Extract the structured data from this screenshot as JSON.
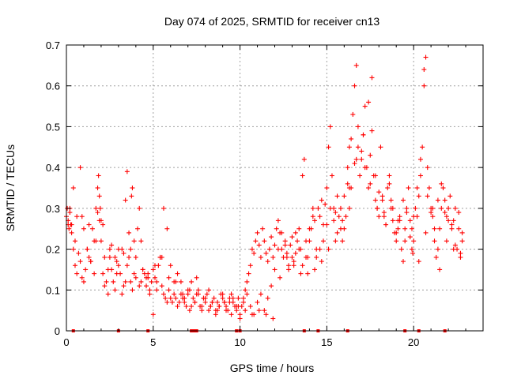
{
  "chart_data": {
    "type": "scatter",
    "title": "Day 074 of 2025, SRMTID for receiver cn13",
    "xlabel": "GPS time / hours",
    "ylabel": "SRMTID / TECUs",
    "xlim": [
      0,
      24
    ],
    "ylim": [
      0,
      0.7
    ],
    "x_ticks": [
      0,
      5,
      10,
      15,
      20
    ],
    "x_tick_labels": [
      "0",
      "5",
      "10",
      "15",
      "20"
    ],
    "y_ticks": [
      0,
      0.1,
      0.2,
      0.3,
      0.4,
      0.5,
      0.6,
      0.7
    ],
    "y_tick_labels": [
      "0",
      "0.1",
      "0.2",
      "0.3",
      "0.4",
      "0.5",
      "0.6",
      "0.7"
    ],
    "grid": true,
    "marker": "plus",
    "series": [
      {
        "name": "SRMTID",
        "color": "#ff0000",
        "x": [
          0.0,
          0.05,
          0.1,
          0.15,
          0.2,
          0.25,
          0.3,
          0.4,
          0.5,
          0.6,
          0.7,
          0.8,
          0.9,
          1.0,
          1.1,
          1.2,
          1.3,
          1.4,
          1.5,
          1.6,
          1.7,
          1.8,
          1.85,
          1.9,
          1.95,
          2.0,
          2.1,
          2.2,
          2.3,
          2.4,
          2.5,
          2.6,
          2.7,
          2.8,
          2.9,
          3.0,
          3.1,
          3.2,
          3.3,
          3.4,
          3.5,
          3.6,
          3.7,
          3.75,
          3.8,
          3.9,
          4.0,
          4.1,
          4.2,
          4.3,
          4.4,
          4.5,
          4.6,
          4.7,
          4.8,
          4.9,
          5.0,
          5.1,
          5.2,
          5.3,
          5.4,
          5.5,
          5.6,
          5.7,
          5.8,
          5.9,
          6.0,
          6.1,
          6.2,
          6.3,
          6.4,
          6.5,
          6.6,
          6.7,
          6.8,
          6.9,
          7.0,
          7.1,
          7.2,
          7.3,
          7.4,
          7.5,
          7.6,
          7.7,
          7.8,
          7.9,
          8.0,
          8.1,
          8.2,
          8.3,
          8.4,
          8.5,
          8.6,
          8.7,
          8.8,
          8.9,
          9.0,
          9.1,
          9.2,
          9.3,
          9.4,
          9.5,
          9.6,
          9.7,
          9.8,
          9.9,
          10.0,
          10.1,
          10.2,
          10.3,
          10.4,
          10.5,
          10.6,
          10.7,
          10.8,
          10.9,
          11.0,
          11.1,
          11.2,
          11.3,
          11.4,
          11.5,
          11.6,
          11.7,
          11.8,
          11.9,
          12.0,
          12.1,
          12.2,
          12.3,
          12.4,
          12.5,
          12.6,
          12.7,
          12.8,
          12.9,
          13.0,
          13.1,
          13.2,
          13.3,
          13.4,
          13.5,
          13.6,
          13.7,
          13.8,
          13.9,
          14.0,
          14.1,
          14.2,
          14.3,
          14.4,
          14.5,
          14.6,
          14.7,
          14.8,
          14.9,
          15.0,
          15.1,
          15.2,
          15.3,
          15.4,
          15.5,
          15.6,
          15.7,
          15.8,
          15.9,
          16.0,
          16.1,
          16.2,
          16.3,
          16.4,
          16.5,
          16.6,
          16.7,
          16.8,
          16.9,
          17.0,
          17.1,
          17.2,
          17.3,
          17.4,
          17.5,
          17.6,
          17.7,
          17.8,
          17.9,
          18.0,
          18.1,
          18.2,
          18.3,
          18.4,
          18.5,
          18.6,
          18.7,
          18.8,
          18.9,
          19.0,
          19.1,
          19.2,
          19.3,
          19.4,
          19.5,
          19.6,
          19.7,
          19.8,
          19.9,
          20.0,
          20.1,
          20.2,
          20.3,
          20.4,
          20.5,
          20.6,
          20.7,
          20.8,
          20.9,
          21.0,
          21.1,
          21.2,
          21.3,
          21.4,
          21.5,
          21.6,
          21.7,
          21.8,
          21.9,
          22.0,
          22.1,
          22.2,
          22.3,
          22.4,
          22.5,
          22.6,
          22.7,
          22.8,
          0.1,
          0.2,
          0.4,
          0.6,
          0.8,
          1.0,
          1.2,
          1.4,
          1.6,
          1.8,
          1.9,
          2.0,
          2.2,
          2.4,
          2.6,
          2.8,
          3.0,
          3.2,
          3.4,
          3.5,
          3.6,
          3.7,
          3.8,
          4.0,
          4.2,
          4.4,
          4.6,
          4.8,
          5.0,
          5.2,
          5.4,
          5.6,
          5.8,
          6.0,
          6.2,
          6.4,
          6.6,
          6.8,
          7.0,
          7.2,
          7.4,
          7.6,
          7.8,
          8.0,
          8.2,
          8.4,
          8.6,
          8.8,
          9.0,
          9.2,
          9.4,
          9.6,
          9.8,
          10.0,
          10.2,
          10.4,
          10.6,
          10.8,
          11.0,
          11.2,
          11.4,
          11.6,
          11.8,
          12.0,
          12.2,
          12.4,
          12.6,
          12.8,
          13.0,
          13.2,
          13.4,
          13.6,
          13.8,
          14.0,
          14.2,
          14.4,
          14.6,
          14.8,
          15.0,
          15.2,
          15.4,
          15.6,
          15.8,
          16.0,
          16.2,
          16.3,
          16.4,
          16.6,
          16.8,
          17.0,
          17.2,
          17.4,
          17.6,
          17.8,
          18.0,
          18.2,
          18.4,
          18.6,
          18.8,
          19.0,
          19.2,
          19.4,
          19.6,
          19.8,
          19.95,
          20.0,
          20.2,
          20.4,
          20.6,
          20.8,
          21.0,
          21.2,
          21.4,
          21.6,
          21.8,
          22.0,
          22.2,
          22.4,
          22.6,
          22.8,
          0.3,
          0.5,
          0.9,
          1.3,
          1.7,
          2.1,
          2.5,
          2.9,
          3.3,
          3.9,
          4.3,
          4.7,
          5.1,
          5.5,
          5.9,
          6.3,
          6.7,
          7.1,
          7.5,
          7.9,
          8.3,
          8.7,
          9.1,
          9.5,
          9.9,
          10.3,
          10.7,
          11.1,
          11.5,
          11.9,
          12.3,
          12.7,
          13.1,
          13.5,
          13.9,
          14.3,
          14.7,
          15.1,
          15.5,
          15.9,
          16.3,
          16.7,
          17.1,
          17.5,
          17.9,
          18.3,
          18.7,
          19.1,
          19.5,
          19.9,
          20.3,
          20.7,
          21.1,
          21.5,
          21.9,
          22.3,
          22.7
        ],
        "y": [
          0.28,
          0.3,
          0.27,
          0.25,
          0.29,
          0.26,
          0.24,
          0.2,
          0.16,
          0.14,
          0.19,
          0.17,
          0.13,
          0.12,
          0.15,
          0.2,
          0.18,
          0.17,
          0.25,
          0.22,
          0.3,
          0.35,
          0.38,
          0.33,
          0.3,
          0.27,
          0.14,
          0.11,
          0.12,
          0.09,
          0.18,
          0.15,
          0.12,
          0.1,
          0.17,
          0.2,
          0.14,
          0.09,
          0.11,
          0.12,
          0.16,
          0.18,
          0.2,
          0.33,
          0.35,
          0.22,
          0.18,
          0.25,
          0.3,
          0.22,
          0.15,
          0.14,
          0.11,
          0.13,
          0.09,
          0.12,
          0.15,
          0.13,
          0.12,
          0.16,
          0.18,
          0.11,
          0.09,
          0.08,
          0.07,
          0.1,
          0.08,
          0.07,
          0.09,
          0.08,
          0.06,
          0.07,
          0.09,
          0.08,
          0.07,
          0.06,
          0.09,
          0.05,
          0.06,
          0.08,
          0.07,
          0.09,
          0.1,
          0.06,
          0.05,
          0.08,
          0.07,
          0.09,
          0.1,
          0.06,
          0.07,
          0.08,
          0.05,
          0.07,
          0.06,
          0.09,
          0.08,
          0.07,
          0.06,
          0.05,
          0.08,
          0.09,
          0.07,
          0.06,
          0.05,
          0.08,
          0.03,
          0.06,
          0.08,
          0.1,
          0.12,
          0.14,
          0.16,
          0.2,
          0.19,
          0.22,
          0.24,
          0.21,
          0.18,
          0.25,
          0.22,
          0.19,
          0.17,
          0.2,
          0.23,
          0.18,
          0.21,
          0.25,
          0.27,
          0.24,
          0.2,
          0.18,
          0.22,
          0.19,
          0.16,
          0.21,
          0.23,
          0.17,
          0.19,
          0.22,
          0.25,
          0.2,
          0.38,
          0.42,
          0.18,
          0.14,
          0.22,
          0.25,
          0.3,
          0.27,
          0.2,
          0.3,
          0.28,
          0.32,
          0.26,
          0.31,
          0.35,
          0.45,
          0.5,
          0.38,
          0.3,
          0.29,
          0.33,
          0.28,
          0.3,
          0.22,
          0.25,
          0.28,
          0.4,
          0.45,
          0.47,
          0.53,
          0.6,
          0.65,
          0.45,
          0.38,
          0.42,
          0.48,
          0.55,
          0.4,
          0.35,
          0.43,
          0.49,
          0.38,
          0.32,
          0.3,
          0.28,
          0.45,
          0.33,
          0.29,
          0.26,
          0.35,
          0.38,
          0.3,
          0.27,
          0.24,
          0.22,
          0.25,
          0.28,
          0.2,
          0.17,
          0.22,
          0.3,
          0.35,
          0.27,
          0.25,
          0.22,
          0.3,
          0.28,
          0.33,
          0.38,
          0.45,
          0.6,
          0.67,
          0.4,
          0.35,
          0.3,
          0.28,
          0.22,
          0.18,
          0.2,
          0.25,
          0.3,
          0.35,
          0.32,
          0.28,
          0.3,
          0.33,
          0.25,
          0.27,
          0.3,
          0.2,
          0.25,
          0.18,
          0.22,
          0.26,
          0.3,
          0.35,
          0.28,
          0.4,
          0.25,
          0.2,
          0.17,
          0.14,
          0.29,
          0.27,
          0.22,
          0.18,
          0.15,
          0.21,
          0.18,
          0.16,
          0.2,
          0.32,
          0.39,
          0.24,
          0.12,
          0.1,
          0.13,
          0.11,
          0.15,
          0.13,
          0.1,
          0.04,
          0.1,
          0.18,
          0.3,
          0.25,
          0.16,
          0.12,
          0.14,
          0.12,
          0.08,
          0.1,
          0.12,
          0.07,
          0.09,
          0.06,
          0.08,
          0.05,
          0.07,
          0.04,
          0.06,
          0.09,
          0.05,
          0.07,
          0.08,
          0.06,
          0.04,
          0.07,
          0.09,
          0.06,
          0.04,
          0.07,
          0.09,
          0.05,
          0.08,
          0.11,
          0.15,
          0.2,
          0.24,
          0.21,
          0.15,
          0.18,
          0.24,
          0.2,
          0.16,
          0.22,
          0.25,
          0.28,
          0.18,
          0.2,
          0.22,
          0.26,
          0.3,
          0.27,
          0.24,
          0.25,
          0.33,
          0.36,
          0.3,
          0.35,
          0.41,
          0.5,
          0.44,
          0.4,
          0.56,
          0.62,
          0.38,
          0.34,
          0.32,
          0.26,
          0.36,
          0.3,
          0.24,
          0.27,
          0.32,
          0.29,
          0.23,
          0.19,
          0.28,
          0.35,
          0.42,
          0.64,
          0.33,
          0.29,
          0.25,
          0.32,
          0.36,
          0.29,
          0.27,
          0.26,
          0.21,
          0.29,
          0.24,
          0.26,
          0.22,
          0.28,
          0.26,
          0.22,
          0.26,
          0.2,
          0.14,
          0.19,
          0.14,
          0.12,
          0.14,
          0.16,
          0.18,
          0.13,
          0.12,
          0.09,
          0.1,
          0.13,
          0.08,
          0.06,
          0.05,
          0.07,
          0.04,
          0.06,
          0.05,
          0.04,
          0.05,
          0.04,
          0.03,
          0.13,
          0.18,
          0.16,
          0.14,
          0.18,
          0.15,
          0.17,
          0.2,
          0.22,
          0.27,
          0.35,
          0.42,
          0.48,
          0.36,
          0.3,
          0.28,
          0.32,
          0.27,
          0.25,
          0.2,
          0.17,
          0.24,
          0.3,
          0.15,
          0.22,
          0.2,
          0.19
        ]
      }
    ],
    "bottom_markers_x": [
      0.4,
      3.0,
      4.7,
      7.2,
      7.3,
      7.4,
      7.5,
      9.8,
      10.0,
      13.7,
      14.5,
      16.2,
      19.5,
      20.3,
      21.8
    ]
  }
}
